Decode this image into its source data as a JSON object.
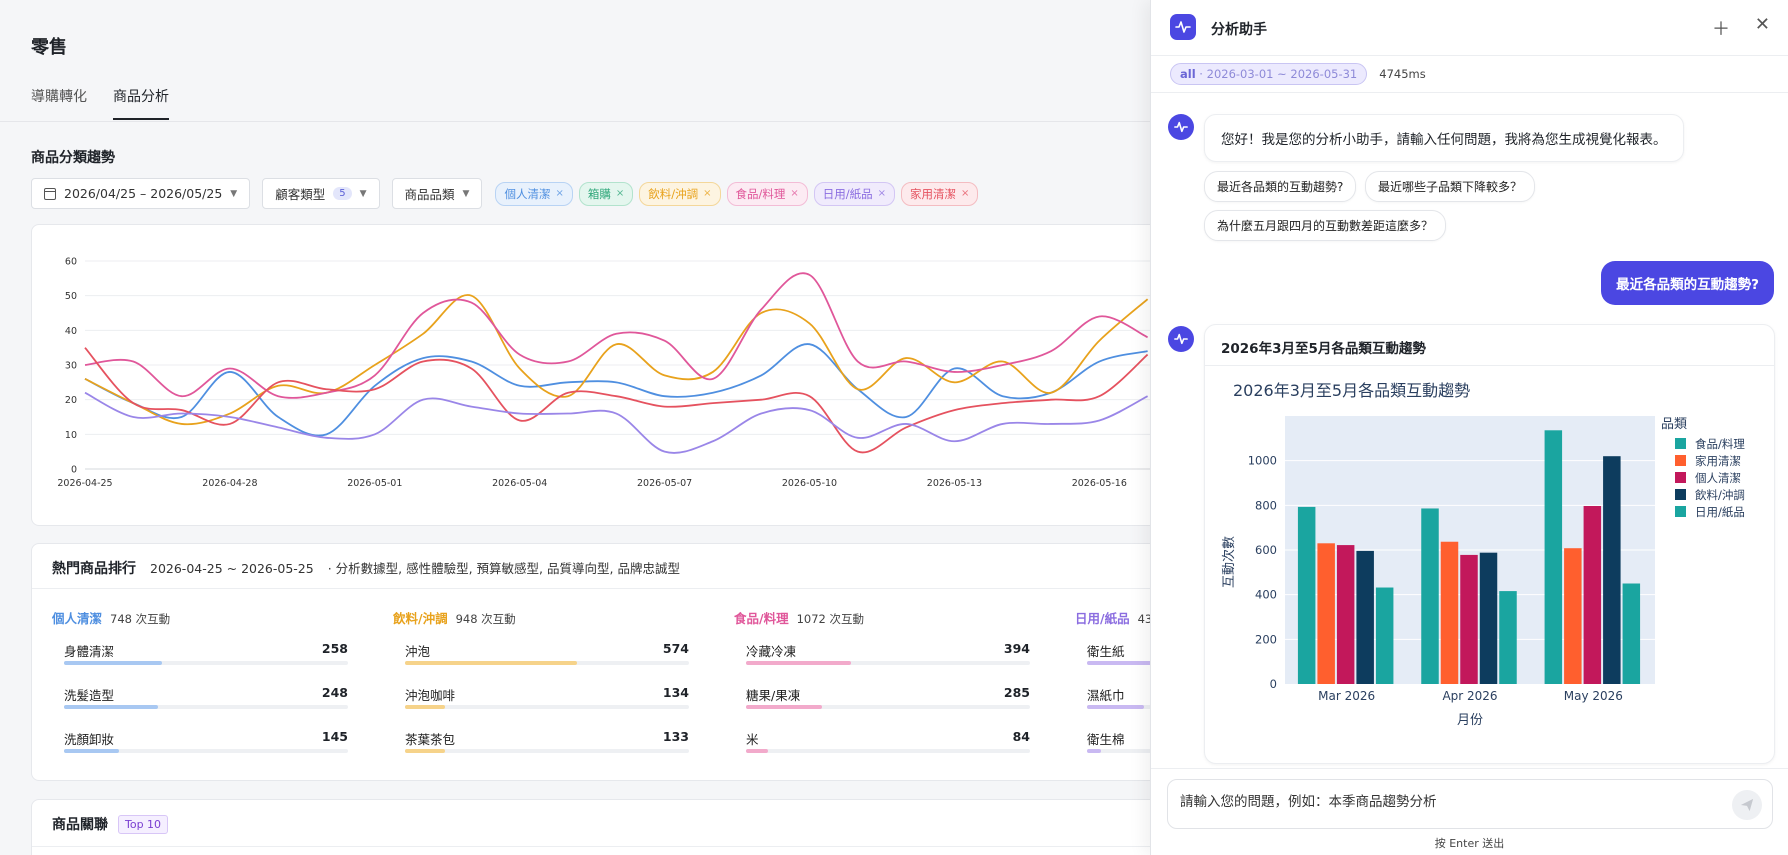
{
  "page": {
    "title": "零售",
    "tabs": [
      {
        "label": "導購轉化"
      },
      {
        "label": "商品分析"
      }
    ],
    "active_tab": 1
  },
  "trend": {
    "section_title": "商品分類趨勢",
    "filters": {
      "date_range": "2026/04/25 – 2026/05/25",
      "customer_type_label": "顧客類型",
      "customer_type_count": "5",
      "category_label": "商品品類"
    },
    "tags": [
      {
        "label": "個人清潔",
        "color": "#4f8fe0",
        "bg": "#e8f1fc",
        "border": "#b8d3f4"
      },
      {
        "label": "箱購",
        "color": "#2fa77a",
        "bg": "#e4f6ee",
        "border": "#b2e3cd"
      },
      {
        "label": "飲料/沖調",
        "color": "#e8a21c",
        "bg": "#fdf4e1",
        "border": "#f4d79a"
      },
      {
        "label": "食品/料理",
        "color": "#e0579a",
        "bg": "#fcebf3",
        "border": "#f3bcd6"
      },
      {
        "label": "日用/紙品",
        "color": "#8b6de0",
        "bg": "#f0ebfc",
        "border": "#d3c6f4"
      },
      {
        "label": "家用清潔",
        "color": "#e5525f",
        "bg": "#fdeaec",
        "border": "#f4bcc1"
      }
    ]
  },
  "chart_data": [
    {
      "type": "line",
      "title": "",
      "x": [
        "2026-04-25",
        "2026-04-26",
        "2026-04-27",
        "2026-04-28",
        "2026-04-29",
        "2026-04-30",
        "2026-05-01",
        "2026-05-02",
        "2026-05-03",
        "2026-05-04",
        "2026-05-05",
        "2026-05-06",
        "2026-05-07",
        "2026-05-08",
        "2026-05-09",
        "2026-05-10",
        "2026-05-11",
        "2026-05-12",
        "2026-05-13",
        "2026-05-14",
        "2026-05-15",
        "2026-05-16",
        "2026-05-17"
      ],
      "x_tick_labels": [
        "2026-04-25",
        "2026-04-28",
        "2026-05-01",
        "2026-05-04",
        "2026-05-07",
        "2026-05-10",
        "2026-05-13",
        "2026-05-16"
      ],
      "y_ticks": [
        "0",
        "10",
        "20",
        "30",
        "40",
        "50",
        "60"
      ],
      "ylim": [
        0,
        60
      ],
      "grid": true,
      "series": [
        {
          "color": "#4f8fe0",
          "values": [
            26,
            19,
            15,
            28,
            15,
            10,
            24,
            32,
            31,
            24,
            25,
            25,
            21,
            22,
            27,
            36,
            23,
            15,
            29,
            21,
            22,
            31,
            34
          ]
        },
        {
          "color": "#e8a21c",
          "values": [
            26,
            19,
            13,
            16,
            24,
            22,
            30,
            39,
            50,
            29,
            21,
            36,
            27,
            28,
            45,
            42,
            23,
            32,
            25,
            31,
            22,
            37,
            49
          ]
        },
        {
          "color": "#e0579a",
          "values": [
            30,
            31,
            21,
            29,
            21,
            22,
            27,
            45,
            48,
            33,
            31,
            39,
            37,
            26,
            46,
            56,
            31,
            31,
            28,
            30,
            34,
            44,
            38
          ]
        },
        {
          "color": "#e5525f",
          "values": [
            35,
            19,
            17,
            13,
            25,
            23,
            23,
            31,
            29,
            14,
            22,
            21,
            18,
            19,
            20,
            21,
            5,
            12,
            17,
            19,
            20,
            21,
            33
          ]
        },
        {
          "color": "#9a86e8",
          "values": [
            22,
            15,
            16,
            15,
            12,
            9,
            10,
            20,
            18,
            16,
            16,
            16,
            5,
            8,
            16,
            17,
            9,
            13,
            8,
            13,
            13,
            14,
            21
          ]
        }
      ]
    },
    {
      "type": "bar",
      "title": "2026年3月至5月各品類互動趨勢",
      "xlabel": "月份",
      "ylabel": "互動次數",
      "categories": [
        "Mar 2026",
        "Apr 2026",
        "May 2026"
      ],
      "y_ticks": [
        "0",
        "200",
        "400",
        "600",
        "800",
        "1000"
      ],
      "ylim": [
        0,
        1200
      ],
      "legend_title": "品類",
      "legend_position": "right",
      "series": [
        {
          "name": "食品/料理",
          "color": "#1aa5a0",
          "values": [
            793,
            786,
            1136
          ]
        },
        {
          "name": "家用清潔",
          "color": "#ff5f2e",
          "values": [
            630,
            637,
            608
          ]
        },
        {
          "name": "個人清潔",
          "color": "#c2185b",
          "values": [
            622,
            578,
            797
          ]
        },
        {
          "name": "飲料/沖調",
          "color": "#0d3c5e",
          "values": [
            596,
            588,
            1020
          ]
        },
        {
          "name": "日用/紙品",
          "color": "#1aa5a0",
          "values": [
            432,
            416,
            450
          ]
        }
      ]
    }
  ],
  "ranking": {
    "title": "熱門商品排行",
    "date_range": "2026-04-25 ~ 2026-05-25",
    "segments": "· 分析數據型, 感性體驗型, 預算敏感型, 品質導向型, 品牌忠誠型",
    "columns": [
      {
        "category": "個人清潔",
        "count": "748 次互動",
        "color": "#4f8fe0",
        "bar": "#a8c8f2",
        "items": [
          {
            "name": "身體清潔",
            "value": "258",
            "share": 0.345
          },
          {
            "name": "洗髮造型",
            "value": "248",
            "share": 0.332
          },
          {
            "name": "洗顏卸妝",
            "value": "145",
            "share": 0.194
          }
        ]
      },
      {
        "category": "飲料/沖調",
        "count": "948 次互動",
        "color": "#e8a21c",
        "bar": "#f6d38a",
        "items": [
          {
            "name": "沖泡",
            "value": "574",
            "share": 0.605
          },
          {
            "name": "沖泡咖啡",
            "value": "134",
            "share": 0.141
          },
          {
            "name": "茶葉茶包",
            "value": "133",
            "share": 0.14
          }
        ]
      },
      {
        "category": "食品/料理",
        "count": "1072 次互動",
        "color": "#e0579a",
        "bar": "#f2aacb",
        "items": [
          {
            "name": "冷藏冷凍",
            "value": "394",
            "share": 0.368
          },
          {
            "name": "糖果/果凍",
            "value": "285",
            "share": 0.266
          },
          {
            "name": "米",
            "value": "84",
            "share": 0.078
          }
        ]
      },
      {
        "category": "日用/紙品",
        "count": "43",
        "color": "#8b6de0",
        "bar": "#c9b9f2",
        "items": [
          {
            "name": "衛生紙",
            "value": "",
            "share": 0.3
          },
          {
            "name": "濕紙巾",
            "value": "",
            "share": 0.2
          },
          {
            "name": "衛生棉",
            "value": "",
            "share": 0.05
          }
        ]
      }
    ]
  },
  "association": {
    "title": "商品關聯",
    "badge": "Top 10"
  },
  "assistant": {
    "title": "分析助手",
    "range_scope": "all",
    "range_dates": " · 2026-03-01 ~ 2026-05-31",
    "latency": "4745ms",
    "greeting": "您好！我是您的分析小助手，請輸入任何問題，我將為您生成視覺化報表。",
    "suggestions": [
      "最近各品類的互動趨勢?",
      "最近哪些子品類下降較多？",
      "為什麼五月跟四月的互動數差距這麼多？"
    ],
    "user_message": "最近各品類的互動趨勢?",
    "answer_title": "2026年3月至5月各品類互動趨勢",
    "input_placeholder": "請輸入您的問題，例如：本季商品趨勢分析",
    "hint": "按 Enter 送出"
  }
}
